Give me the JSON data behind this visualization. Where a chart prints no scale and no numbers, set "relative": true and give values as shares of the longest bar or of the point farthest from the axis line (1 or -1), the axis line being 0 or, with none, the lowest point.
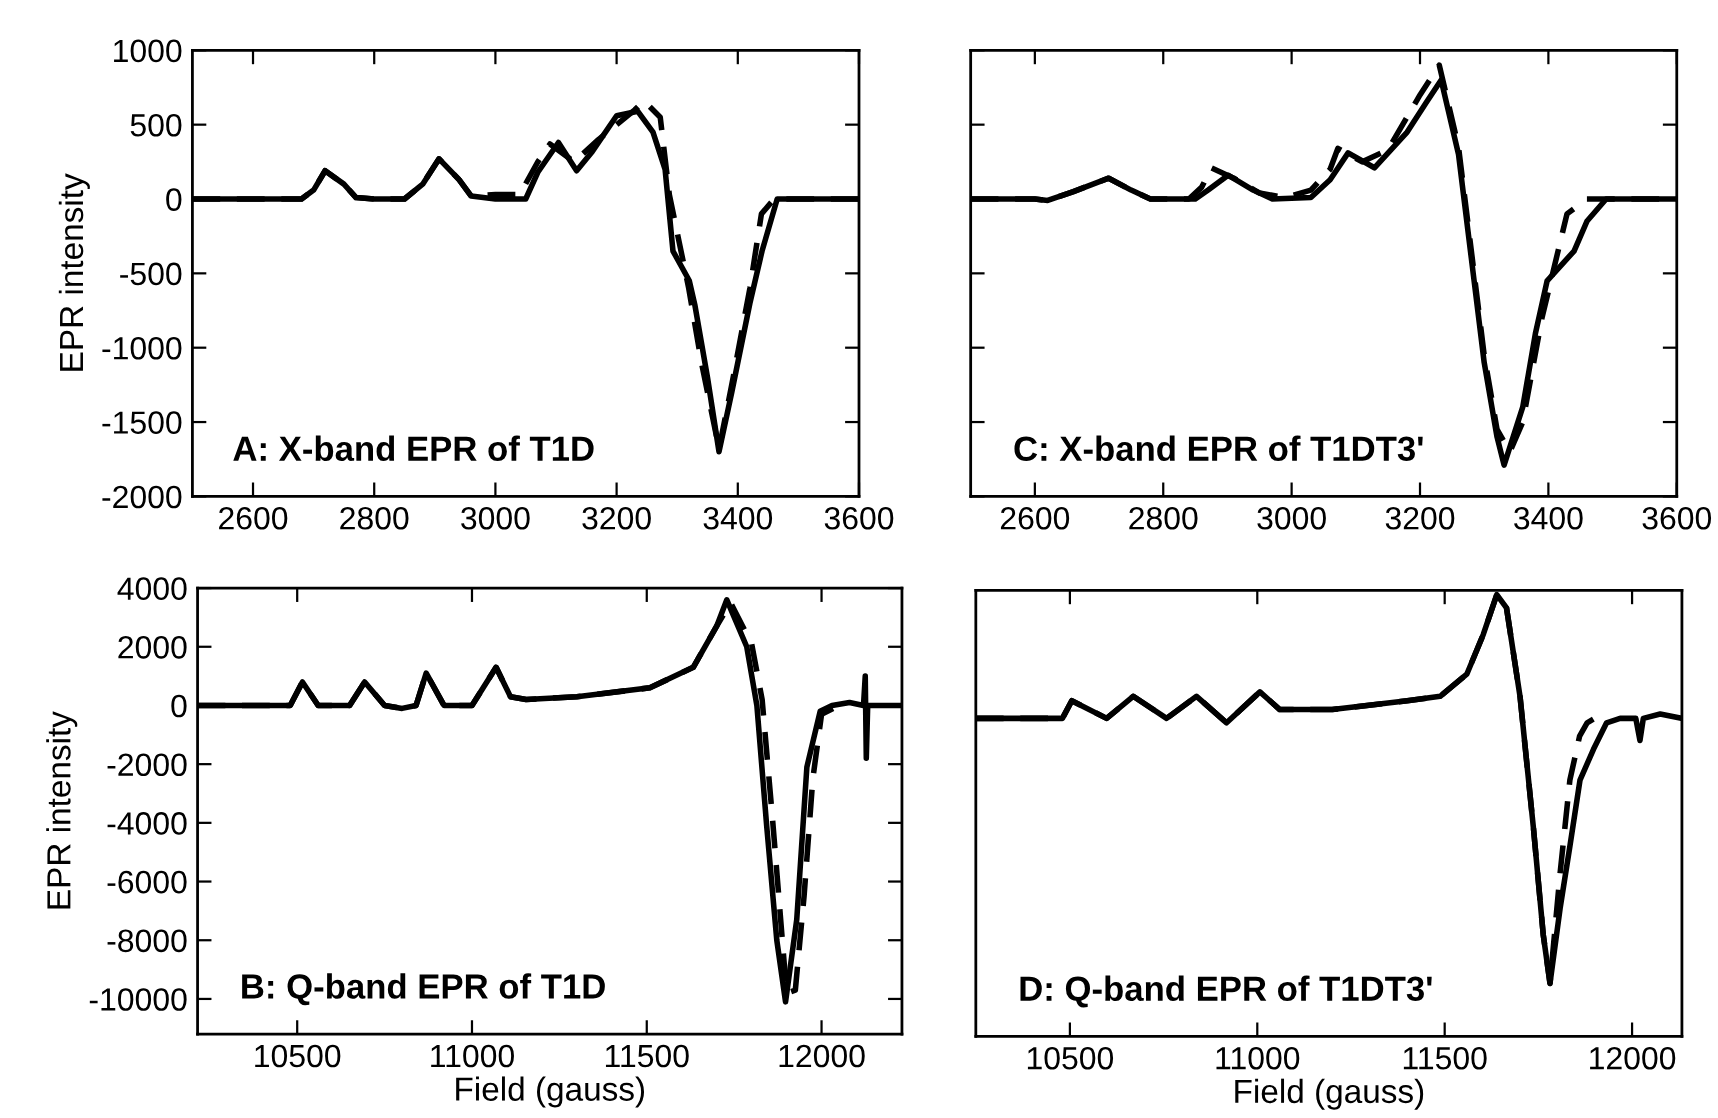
{
  "chart_data": [
    {
      "type": "line",
      "ylabel": "EPR intensity",
      "annotations": [
        "A: X-band EPR of T1D"
      ],
      "xlim": [
        2500,
        3600
      ],
      "xticks": [
        2600,
        2800,
        3000,
        3200,
        3400,
        3600
      ],
      "ylim": [
        -2000,
        1000
      ],
      "yticks": [
        -2000,
        -1500,
        -1000,
        -500,
        0,
        500,
        1000
      ],
      "grid": false,
      "series": [
        {
          "color": "#000000",
          "line_style": "solid",
          "x": [
            2500,
            2600,
            2680,
            2700,
            2719,
            2750,
            2770,
            2800,
            2850,
            2880,
            2907,
            2940,
            2960,
            3000,
            3050,
            3070,
            3104,
            3134,
            3160,
            3200,
            3235,
            3260,
            3280,
            3293,
            3320,
            3329,
            3350,
            3369,
            3390,
            3420,
            3440,
            3465,
            3500,
            3600
          ],
          "values": [
            0,
            0,
            0,
            60,
            190,
            100,
            10,
            0,
            0,
            100,
            270,
            130,
            20,
            0,
            0,
            180,
            380,
            190,
            320,
            560,
            590,
            450,
            200,
            -350,
            -550,
            -710,
            -1200,
            -1700,
            -1300,
            -700,
            -350,
            0,
            0,
            0
          ]
        },
        {
          "color": "#000000",
          "line_style": "dashed",
          "x": [
            2500,
            2600,
            2680,
            2700,
            2719,
            2750,
            2770,
            2800,
            2850,
            2880,
            2907,
            2940,
            2960,
            3000,
            3040,
            3070,
            3090,
            3130,
            3170,
            3230,
            3245,
            3272,
            3287,
            3319,
            3340,
            3369,
            3390,
            3420,
            3439,
            3460,
            3500,
            3600
          ],
          "values": [
            0,
            0,
            0,
            60,
            190,
            100,
            10,
            0,
            0,
            100,
            270,
            130,
            20,
            30,
            30,
            250,
            370,
            250,
            400,
            600,
            660,
            550,
            30,
            -600,
            -1100,
            -1680,
            -1250,
            -600,
            -100,
            0,
            0,
            0
          ]
        }
      ]
    },
    {
      "type": "line",
      "annotations": [
        "C: X-band EPR of T1DT3'"
      ],
      "xlim": [
        2500,
        3600
      ],
      "xticks": [
        2600,
        2800,
        3000,
        3200,
        3400,
        3600
      ],
      "ylim": [
        -2000,
        1000
      ],
      "yticks": [
        -2000,
        -1500,
        -1000,
        -500,
        0,
        500,
        1000
      ],
      "tick_labels": "x",
      "grid": false,
      "series": [
        {
          "color": "#000000",
          "line_style": "solid",
          "x": [
            2500,
            2600,
            2620,
            2660,
            2715,
            2750,
            2780,
            2850,
            2870,
            2901,
            2940,
            2970,
            3030,
            3060,
            3088,
            3129,
            3180,
            3210,
            3233,
            3260,
            3280,
            3300,
            3320,
            3331,
            3360,
            3380,
            3398,
            3440,
            3460,
            3490,
            3600
          ],
          "values": [
            0,
            0,
            -10,
            50,
            140,
            60,
            0,
            0,
            60,
            160,
            60,
            0,
            10,
            130,
            310,
            210,
            450,
            650,
            800,
            300,
            -400,
            -1100,
            -1600,
            -1790,
            -1400,
            -900,
            -550,
            -350,
            -150,
            0,
            0
          ]
        },
        {
          "color": "#000000",
          "line_style": "dashed",
          "x": [
            2500,
            2600,
            2620,
            2660,
            2715,
            2750,
            2780,
            2840,
            2860,
            2875,
            2910,
            2950,
            2990,
            3030,
            3060,
            3072,
            3110,
            3150,
            3200,
            3230,
            3260,
            3280,
            3300,
            3320,
            3340,
            3360,
            3390,
            3429,
            3460,
            3600
          ],
          "values": [
            0,
            0,
            -10,
            50,
            140,
            60,
            0,
            0,
            80,
            210,
            140,
            40,
            10,
            60,
            200,
            340,
            250,
            330,
            700,
            900,
            350,
            -350,
            -1050,
            -1550,
            -1700,
            -1500,
            -800,
            -100,
            0,
            0
          ]
        }
      ]
    },
    {
      "type": "line",
      "ylabel": "EPR intensity",
      "xlabel": "Field (gauss)",
      "annotations": [
        "B: Q-band EPR of T1D"
      ],
      "xlim": [
        10215,
        12230
      ],
      "xticks": [
        10500,
        11000,
        11500,
        12000
      ],
      "ylim": [
        -11200,
        4000
      ],
      "yticks": [
        -10000,
        -8000,
        -6000,
        -4000,
        -2000,
        0,
        2000,
        4000
      ],
      "grid": false,
      "series": [
        {
          "color": "#000000",
          "line_style": "solid",
          "x": [
            10215,
            10480,
            10515,
            10560,
            10650,
            10693,
            10750,
            10800,
            10840,
            10869,
            10920,
            11000,
            11069,
            11110,
            11155,
            11300,
            11509,
            11633,
            11700,
            11729,
            11786,
            11815,
            11843,
            11872,
            11897,
            11929,
            11958,
            11996,
            12030,
            12080,
            12120,
            12125,
            12128,
            12132,
            12230
          ],
          "values": [
            0,
            0,
            800,
            0,
            0,
            800,
            0,
            -100,
            0,
            1100,
            0,
            0,
            1300,
            300,
            200,
            300,
            600,
            1300,
            2700,
            3600,
            2000,
            0,
            -4100,
            -8000,
            -10100,
            -7300,
            -2100,
            -200,
            0,
            100,
            0,
            1000,
            -1800,
            0,
            0
          ]
        },
        {
          "color": "#000000",
          "line_style": "dashed",
          "x": [
            10215,
            10480,
            10515,
            10560,
            10650,
            10693,
            10750,
            10800,
            10840,
            10869,
            10920,
            11000,
            11069,
            11110,
            11155,
            11300,
            11509,
            11633,
            11700,
            11740,
            11800,
            11830,
            11860,
            11900,
            11925,
            11950,
            11975,
            12000,
            12050
          ],
          "values": [
            0,
            0,
            800,
            0,
            0,
            800,
            0,
            -100,
            0,
            1100,
            0,
            0,
            1300,
            300,
            200,
            300,
            600,
            1300,
            2700,
            3500,
            2100,
            200,
            -3900,
            -9800,
            -9700,
            -6500,
            -2500,
            -300,
            0
          ]
        }
      ]
    },
    {
      "type": "line",
      "relative": true,
      "xlabel": "Field (gauss)",
      "annotations": [
        "D: Q-band EPR of T1DT3'"
      ],
      "xlim": [
        10249,
        12133
      ],
      "xticks": [
        10500,
        11000,
        11500,
        12000
      ],
      "tick_labels": "x",
      "grid": false,
      "series": [
        {
          "color": "#000000",
          "line_style": "solid",
          "x": [
            10249,
            10400,
            10480,
            10505,
            10598,
            10669,
            10758,
            10838,
            10918,
            11007,
            11060,
            11200,
            11400,
            11488,
            11559,
            11603,
            11639,
            11665,
            11701,
            11737,
            11763,
            11781,
            11808,
            11834,
            11861,
            11897,
            11932,
            11968,
            12010,
            12021,
            12030,
            12075,
            12133
          ],
          "values": [
            0.72,
            0.72,
            0.72,
            0.76,
            0.72,
            0.77,
            0.72,
            0.77,
            0.71,
            0.78,
            0.74,
            0.74,
            0.76,
            0.77,
            0.82,
            0.91,
            1.0,
            0.97,
            0.77,
            0.47,
            0.23,
            0.12,
            0.29,
            0.43,
            0.58,
            0.65,
            0.71,
            0.72,
            0.72,
            0.67,
            0.72,
            0.73,
            0.72
          ]
        },
        {
          "color": "#000000",
          "line_style": "dashed",
          "x": [
            10249,
            10400,
            10480,
            10505,
            10598,
            10669,
            10758,
            10838,
            10918,
            11007,
            11060,
            11200,
            11400,
            11488,
            11559,
            11603,
            11639,
            11665,
            11701,
            11737,
            11763,
            11781,
            11808,
            11834,
            11860,
            11880,
            11900
          ],
          "values": [
            0.72,
            0.72,
            0.72,
            0.76,
            0.72,
            0.77,
            0.72,
            0.77,
            0.71,
            0.78,
            0.74,
            0.74,
            0.76,
            0.77,
            0.82,
            0.91,
            1.0,
            0.97,
            0.77,
            0.47,
            0.23,
            0.12,
            0.37,
            0.58,
            0.68,
            0.71,
            0.72
          ]
        }
      ]
    }
  ]
}
